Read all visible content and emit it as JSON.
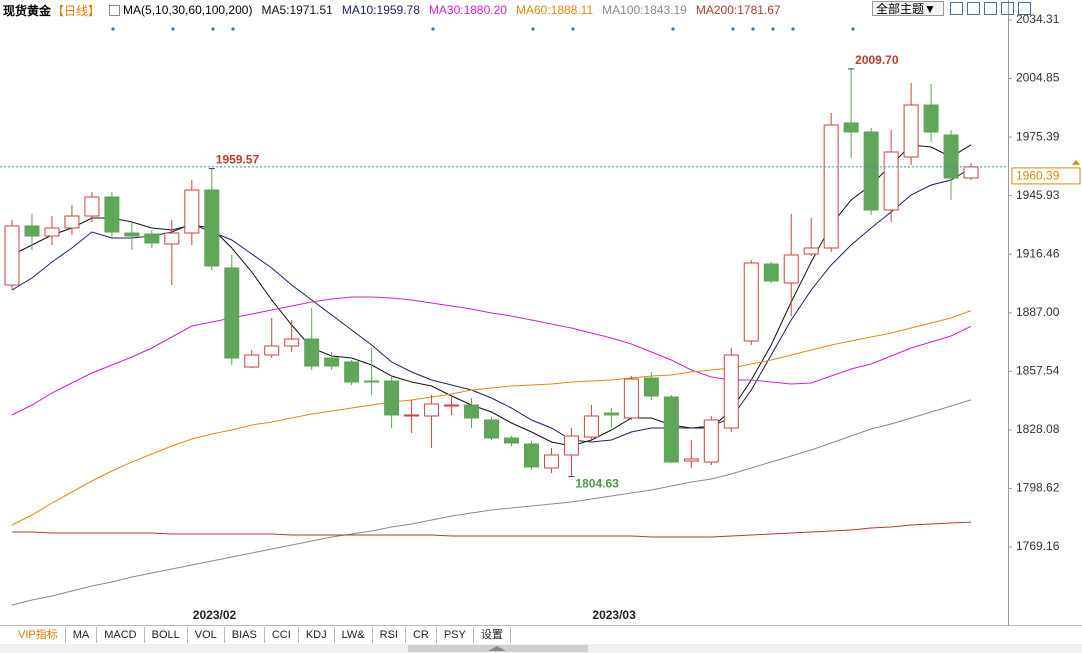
{
  "chart_data": {
    "type": "candlestick",
    "title": "现货黄金",
    "period": "【日线】",
    "indicator": "MA(5,10,30,60,100,200)",
    "theme_button": "全部主题",
    "categories": [
      null,
      null,
      null,
      null,
      null,
      null,
      null,
      null,
      null,
      "2023/02",
      null,
      null,
      null,
      null,
      null,
      null,
      null,
      null,
      null,
      null,
      null,
      null,
      null,
      null,
      null,
      null,
      null,
      null,
      null,
      "2023/03",
      null,
      null,
      null,
      null,
      null,
      null,
      null,
      null,
      null,
      null,
      null,
      null,
      null,
      null,
      null,
      null,
      null,
      null,
      null
    ],
    "open": [
      1900.98,
      1930.66,
      1925.63,
      1929.66,
      1935.69,
      1945.25,
      1927.14,
      1926.64,
      1921.61,
      1927.14,
      1948.78,
      1909.53,
      1859.72,
      1865.76,
      1870.29,
      1873.81,
      1864.25,
      1862.24,
      1852.68,
      1852.68,
      1835.07,
      1835.07,
      1840.1,
      1840.6,
      1833.06,
      1824.0,
      1820.98,
      1808.91,
      1815.45,
      1824.5,
      1836.58,
      1834.06,
      1854.19,
      1844.63,
      1812.43,
      1811.92,
      1829.03,
      1872.8,
      1911.54,
      1901.98,
      1916.57,
      1919.59,
      1982.49,
      1977.96,
      1938.71,
      1965.38,
      1991.54,
      1976.45,
      1954.81
    ],
    "high": [
      1933.68,
      1936.7,
      1935.69,
      1941.23,
      1947.77,
      1947.77,
      1932.68,
      1928.65,
      1933.68,
      1953.81,
      1959.57,
      1916.07,
      1868.27,
      1884.37,
      1883.37,
      1889.41,
      1867.27,
      1863.24,
      1869.28,
      1855.7,
      1843.12,
      1845.63,
      1844.63,
      1844.12,
      1834.56,
      1825.01,
      1822.49,
      1818.97,
      1829.03,
      1840.6,
      1839.09,
      1855.19,
      1857.21,
      1845.63,
      1822.99,
      1835.07,
      1869.28,
      1913.56,
      1912.55,
      1936.7,
      1934.69,
      1987.52,
      2009.7,
      1979.97,
      1978.96,
      2002.61,
      2002.11,
      1978.96,
      1962.36
    ],
    "low": [
      1898.46,
      1918.59,
      1921.1,
      1926.13,
      1932.68,
      1924.63,
      1918.59,
      1919.59,
      1900.98,
      1921.1,
      1908.52,
      1860.73,
      1859.22,
      1864.25,
      1867.27,
      1858.21,
      1858.21,
      1850.66,
      1845.63,
      1829.03,
      1826.51,
      1818.97,
      1835.57,
      1829.03,
      1822.99,
      1819.97,
      1807.9,
      1806.39,
      1804.63,
      1822.49,
      1829.03,
      1833.06,
      1843.12,
      1811.42,
      1808.91,
      1810.41,
      1827.02,
      1870.79,
      1901.98,
      1885.38,
      1915.57,
      1917.58,
      1964.88,
      1936.2,
      1932.68,
      1961.35,
      1972.93,
      1943.74,
      1953.81
    ],
    "close": [
      1930.66,
      1925.63,
      1929.66,
      1935.69,
      1945.25,
      1927.64,
      1925.63,
      1922.11,
      1927.14,
      1948.78,
      1910.54,
      1864.25,
      1865.76,
      1870.29,
      1873.81,
      1860.22,
      1860.22,
      1852.17,
      1852.17,
      1835.57,
      1835.57,
      1841.11,
      1840.6,
      1834.06,
      1824.0,
      1821.48,
      1809.41,
      1815.45,
      1825.01,
      1835.07,
      1835.57,
      1853.68,
      1845.13,
      1811.92,
      1813.43,
      1833.06,
      1865.76,
      1912.05,
      1902.99,
      1916.07,
      1919.59,
      1981.48,
      1977.96,
      1938.71,
      1967.89,
      1991.54,
      1977.96,
      1954.81,
      1960.39
    ],
    "high_labels": [
      null,
      null,
      null,
      null,
      null,
      null,
      null,
      null,
      null,
      null,
      "1959.57",
      null,
      null,
      null,
      null,
      null,
      null,
      null,
      null,
      null,
      null,
      null,
      null,
      null,
      null,
      null,
      null,
      null,
      null,
      null,
      null,
      null,
      null,
      null,
      null,
      null,
      null,
      null,
      null,
      null,
      null,
      null,
      "2009.70",
      null,
      null,
      null,
      null,
      null,
      null
    ],
    "low_labels": [
      null,
      null,
      null,
      null,
      null,
      null,
      null,
      null,
      null,
      null,
      null,
      null,
      null,
      null,
      null,
      null,
      null,
      null,
      null,
      null,
      null,
      null,
      null,
      null,
      null,
      null,
      null,
      null,
      "1804.63",
      null,
      null,
      null,
      null,
      null,
      null,
      null,
      null,
      null,
      null,
      null,
      null,
      null,
      null,
      null,
      null,
      null,
      null,
      null,
      null
    ],
    "up_color": "#d0413c",
    "down_color": "#5fa55a",
    "series": [
      {
        "name": "MA5:1971.51",
        "color": "#111111",
        "values": [
          1916.07,
          1921.1,
          1926.13,
          1929.66,
          1934.69,
          1934.69,
          1932.68,
          1929.66,
          1928.65,
          1931.17,
          1929.66,
          1919.59,
          1907.52,
          1893.43,
          1880.85,
          1869.28,
          1865.26,
          1864.25,
          1860.73,
          1855.19,
          1852.17,
          1850.16,
          1845.13,
          1840.6,
          1837.08,
          1831.55,
          1827.02,
          1821.99,
          1819.97,
          1822.99,
          1828.02,
          1834.06,
          1834.06,
          1830.54,
          1829.03,
          1829.03,
          1838.09,
          1853.18,
          1870.79,
          1892.42,
          1912.55,
          1931.17,
          1943.74,
          1951.29,
          1961.35,
          1971.42,
          1970.41,
          1965.38,
          1971.51
        ]
      },
      {
        "name": "MA10:1959.78",
        "color": "#1c1f6b",
        "values": [
          1898.46,
          1904.5,
          1912.55,
          1919.59,
          1927.64,
          1924.63,
          1924.63,
          1925.63,
          1927.64,
          1931.67,
          1927.64,
          1923.62,
          1916.57,
          1909.53,
          1900.98,
          1893.43,
          1885.88,
          1878.34,
          1870.79,
          1862.24,
          1857.21,
          1853.18,
          1850.66,
          1848.15,
          1844.12,
          1839.09,
          1833.06,
          1829.03,
          1822.99,
          1821.99,
          1822.99,
          1827.02,
          1829.03,
          1829.03,
          1829.03,
          1830.04,
          1834.06,
          1848.15,
          1865.76,
          1883.37,
          1898.46,
          1911.04,
          1921.1,
          1929.66,
          1937.71,
          1946.26,
          1951.29,
          1953.81,
          1959.78
        ]
      },
      {
        "name": "MA30:1880.20",
        "color": "#d21fd2",
        "values": [
          1835.57,
          1840.6,
          1846.64,
          1851.67,
          1856.7,
          1860.73,
          1864.75,
          1869.28,
          1874.82,
          1880.35,
          1882.36,
          1884.37,
          1886.39,
          1888.4,
          1890.41,
          1892.42,
          1893.93,
          1894.94,
          1894.94,
          1894.44,
          1893.43,
          1891.92,
          1890.41,
          1888.9,
          1886.89,
          1885.38,
          1883.37,
          1881.36,
          1879.34,
          1876.83,
          1874.31,
          1871.29,
          1867.27,
          1863.24,
          1858.21,
          1854.69,
          1853.18,
          1853.18,
          1852.17,
          1851.17,
          1851.67,
          1855.19,
          1858.72,
          1861.23,
          1865.26,
          1869.28,
          1872.3,
          1875.32,
          1880.2
        ]
      },
      {
        "name": "MA60:1888.11",
        "color": "#e48a0c",
        "values": [
          1780.23,
          1785.26,
          1791.3,
          1796.83,
          1802.36,
          1807.4,
          1811.92,
          1815.95,
          1819.97,
          1823.5,
          1826.01,
          1828.02,
          1830.54,
          1832.05,
          1834.06,
          1836.07,
          1837.58,
          1839.09,
          1840.6,
          1842.11,
          1843.12,
          1844.63,
          1846.14,
          1848.15,
          1849.16,
          1850.16,
          1850.66,
          1851.17,
          1852.17,
          1852.68,
          1853.18,
          1854.19,
          1855.19,
          1855.7,
          1857.21,
          1858.21,
          1859.22,
          1861.23,
          1863.24,
          1865.76,
          1868.27,
          1870.79,
          1872.8,
          1874.82,
          1876.83,
          1879.34,
          1881.86,
          1884.37,
          1888.11
        ]
      },
      {
        "name": "MA100:1843.19",
        "color": "#8a8a8a",
        "values": [
          1739.98,
          1742.49,
          1744.5,
          1747.02,
          1749.54,
          1751.55,
          1754.06,
          1756.08,
          1758.09,
          1760.1,
          1762.11,
          1764.13,
          1766.14,
          1768.15,
          1770.16,
          1772.18,
          1774.19,
          1775.7,
          1777.21,
          1779.22,
          1780.73,
          1782.74,
          1784.75,
          1786.26,
          1787.77,
          1788.78,
          1789.79,
          1790.79,
          1791.8,
          1793.31,
          1794.82,
          1796.33,
          1797.84,
          1799.85,
          1801.86,
          1803.37,
          1805.89,
          1808.91,
          1811.92,
          1814.94,
          1817.96,
          1821.48,
          1825.01,
          1828.53,
          1831.04,
          1834.06,
          1837.08,
          1840.1,
          1843.19
        ]
      },
      {
        "name": "MA200:1781.67",
        "color": "#b03a32",
        "values": [
          1776.7,
          1776.7,
          1776.2,
          1776.2,
          1776.2,
          1776.2,
          1776.2,
          1776.2,
          1775.7,
          1775.7,
          1775.7,
          1775.7,
          1775.7,
          1775.7,
          1775.2,
          1775.2,
          1775.2,
          1775.2,
          1775.2,
          1775.2,
          1775.2,
          1775.2,
          1774.69,
          1774.69,
          1774.69,
          1774.69,
          1774.69,
          1774.69,
          1774.69,
          1774.69,
          1774.69,
          1774.69,
          1774.19,
          1774.19,
          1774.19,
          1774.19,
          1774.69,
          1775.2,
          1775.7,
          1776.2,
          1776.7,
          1777.21,
          1777.71,
          1778.72,
          1779.22,
          1780.23,
          1780.73,
          1781.23,
          1781.67
        ]
      }
    ],
    "ylim": [
      1737.46,
      2036.82
    ],
    "yticks": [
      2034.31,
      2004.85,
      1975.39,
      1945.93,
      1916.46,
      {
        "value": 1887,
        "label": "1887.00"
      },
      1857.54,
      1828.08,
      1798.62,
      1769.16
    ],
    "last_price": 1960.39
  },
  "toolbar": {
    "tabs": [
      "VIP指标",
      "MA",
      "MACD",
      "BOLL",
      "VOL",
      "BIAS",
      "CCI",
      "KDJ",
      "LW&",
      "RSI",
      "CR",
      "PSY",
      "设置"
    ]
  }
}
